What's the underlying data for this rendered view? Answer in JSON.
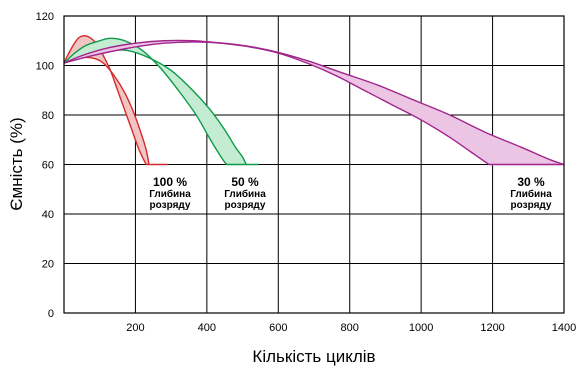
{
  "chart_data": {
    "type": "area",
    "xlabel": "Кількість циклів",
    "ylabel": "Ємність (%)",
    "xlim": [
      0,
      1400
    ],
    "ylim": [
      0,
      120
    ],
    "x_ticks": [
      200,
      400,
      600,
      800,
      1000,
      1200,
      1400
    ],
    "y_ticks": [
      0,
      20,
      40,
      60,
      80,
      100,
      120
    ],
    "grid": true,
    "series": [
      {
        "color": "#d42a2a",
        "fill": "#f2c4c4",
        "upper": [
          [
            0,
            101
          ],
          [
            10,
            104
          ],
          [
            25,
            108
          ],
          [
            40,
            111
          ],
          [
            55,
            112
          ],
          [
            70,
            111.5
          ],
          [
            90,
            109
          ],
          [
            110,
            104
          ],
          [
            130,
            98
          ],
          [
            150,
            90
          ],
          [
            170,
            82
          ],
          [
            190,
            74
          ],
          [
            210,
            66
          ],
          [
            230,
            60
          ]
        ],
        "lower": [
          [
            0,
            101
          ],
          [
            40,
            103
          ],
          [
            80,
            103
          ],
          [
            110,
            101
          ],
          [
            140,
            96
          ],
          [
            170,
            89
          ],
          [
            195,
            81
          ],
          [
            215,
            73
          ],
          [
            230,
            66
          ],
          [
            238,
            60
          ]
        ],
        "end_flat": [
          [
            230,
            60
          ],
          [
            290,
            60
          ]
        ]
      },
      {
        "color": "#0e9a4a",
        "fill": "#c4ecd2",
        "upper": [
          [
            0,
            101
          ],
          [
            30,
            105
          ],
          [
            60,
            108
          ],
          [
            100,
            110
          ],
          [
            130,
            111
          ],
          [
            170,
            110
          ],
          [
            220,
            106
          ],
          [
            270,
            99
          ],
          [
            320,
            90
          ],
          [
            370,
            80
          ],
          [
            410,
            70
          ],
          [
            440,
            63
          ],
          [
            455,
            60
          ]
        ],
        "lower": [
          [
            0,
            101
          ],
          [
            60,
            104
          ],
          [
            120,
            106
          ],
          [
            180,
            106
          ],
          [
            240,
            103
          ],
          [
            300,
            98
          ],
          [
            360,
            90
          ],
          [
            410,
            82
          ],
          [
            450,
            74
          ],
          [
            480,
            67
          ],
          [
            500,
            63
          ],
          [
            510,
            60
          ]
        ],
        "end_flat": [
          [
            455,
            60
          ],
          [
            545,
            60
          ]
        ]
      },
      {
        "color": "#a0258c",
        "fill": "#ecc4e4",
        "upper": [
          [
            0,
            101
          ],
          [
            50,
            104
          ],
          [
            120,
            107
          ],
          [
            200,
            109
          ],
          [
            280,
            110
          ],
          [
            360,
            110
          ],
          [
            440,
            109
          ],
          [
            520,
            107.5
          ],
          [
            600,
            105
          ],
          [
            680,
            101
          ],
          [
            760,
            96
          ],
          [
            840,
            90
          ],
          [
            920,
            84
          ],
          [
            1000,
            78
          ],
          [
            1080,
            71
          ],
          [
            1140,
            65
          ],
          [
            1190,
            60
          ]
        ],
        "lower": [
          [
            0,
            101
          ],
          [
            80,
            104
          ],
          [
            180,
            107
          ],
          [
            280,
            109
          ],
          [
            380,
            109.5
          ],
          [
            480,
            108.5
          ],
          [
            580,
            106
          ],
          [
            680,
            102
          ],
          [
            780,
            97
          ],
          [
            880,
            92
          ],
          [
            980,
            86
          ],
          [
            1080,
            80
          ],
          [
            1180,
            73
          ],
          [
            1280,
            67
          ],
          [
            1360,
            62
          ],
          [
            1400,
            60
          ]
        ],
        "end_flat": [
          [
            1190,
            60
          ],
          [
            1400,
            60
          ]
        ]
      }
    ],
    "annotations": [
      {
        "pct": "100 %",
        "line1": "Глибина",
        "line2": "розряду"
      },
      {
        "pct": "50 %",
        "line1": "Глибина",
        "line2": "розряду"
      },
      {
        "pct": "30 %",
        "line1": "Глибина",
        "line2": "розряду"
      }
    ]
  }
}
